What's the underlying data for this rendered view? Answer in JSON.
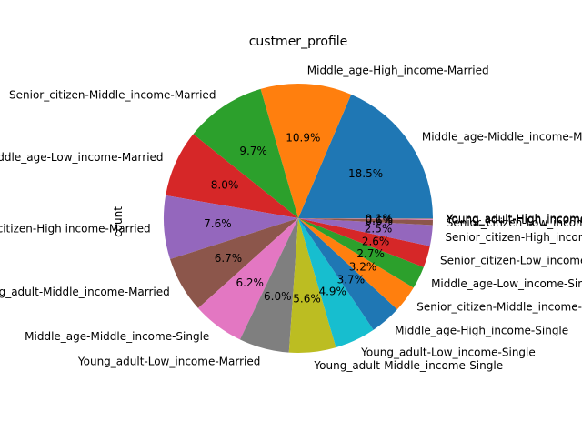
{
  "chart_data": {
    "type": "pie",
    "title": "custmer_profile",
    "ylabel": "count",
    "xlabel": "",
    "start_angle_deg": 0,
    "direction": "counterclockwise",
    "slices": [
      {
        "label": "Middle_age-Middle_income-Married",
        "percent": 18.5,
        "pct_text": "18.5%",
        "color": "#1f77b4"
      },
      {
        "label": "Middle_age-High_income-Married",
        "percent": 10.9,
        "pct_text": "10.9%",
        "color": "#ff7f0e"
      },
      {
        "label": "Senior_citizen-Middle_income-Married",
        "percent": 9.7,
        "pct_text": "9.7%",
        "color": "#2ca02c"
      },
      {
        "label": "Middle_age-Low_income-Married",
        "percent": 8.0,
        "pct_text": "8.0%",
        "color": "#d62728"
      },
      {
        "label": "Senior_citizen-High income-Married",
        "percent": 7.6,
        "pct_text": "7.6%",
        "color": "#9467bd"
      },
      {
        "label": "Young_adult-Middle_income-Married",
        "percent": 6.7,
        "pct_text": "6.7%",
        "color": "#8c564b"
      },
      {
        "label": "Middle_age-Middle_income-Single",
        "percent": 6.2,
        "pct_text": "6.2%",
        "color": "#e377c2"
      },
      {
        "label": "Young_adult-Low_income-Married",
        "percent": 6.0,
        "pct_text": "6.0%",
        "color": "#7f7f7f"
      },
      {
        "label": "Young_adult-Middle_income-Single",
        "percent": 5.6,
        "pct_text": "5.6%",
        "color": "#bcbd22"
      },
      {
        "label": "Young_adult-Low_income-Single",
        "percent": 4.9,
        "pct_text": "4.9%",
        "color": "#17becf"
      },
      {
        "label": "Middle_age-High_income-Single",
        "percent": 3.7,
        "pct_text": "3.7%",
        "color": "#1f77b4"
      },
      {
        "label": "Senior_citizen-Middle_income-Single",
        "percent": 3.2,
        "pct_text": "3.2%",
        "color": "#ff7f0e"
      },
      {
        "label": "Middle_age-Low_income-Single",
        "percent": 2.7,
        "pct_text": "2.7%",
        "color": "#2ca02c"
      },
      {
        "label": "Senior_citizen-Low_income-Single",
        "percent": 2.6,
        "pct_text": "2.6%",
        "color": "#d62728"
      },
      {
        "label": "Senior_citizen-High_income-Single",
        "percent": 2.5,
        "pct_text": "2.5%",
        "color": "#9467bd"
      },
      {
        "label": "Senior_citizen-Low_income-Married",
        "percent": 0.6,
        "pct_text": "0.6%",
        "color": "#8c564b"
      },
      {
        "label": "Young_adult-High_income-Married",
        "percent": 0.1,
        "pct_text": "0.1%",
        "color": "#e377c2"
      },
      {
        "label": "Young_adult-High_income-Single",
        "percent": 0.1,
        "pct_text": "0.1%",
        "color": "#7f7f7f"
      }
    ]
  }
}
